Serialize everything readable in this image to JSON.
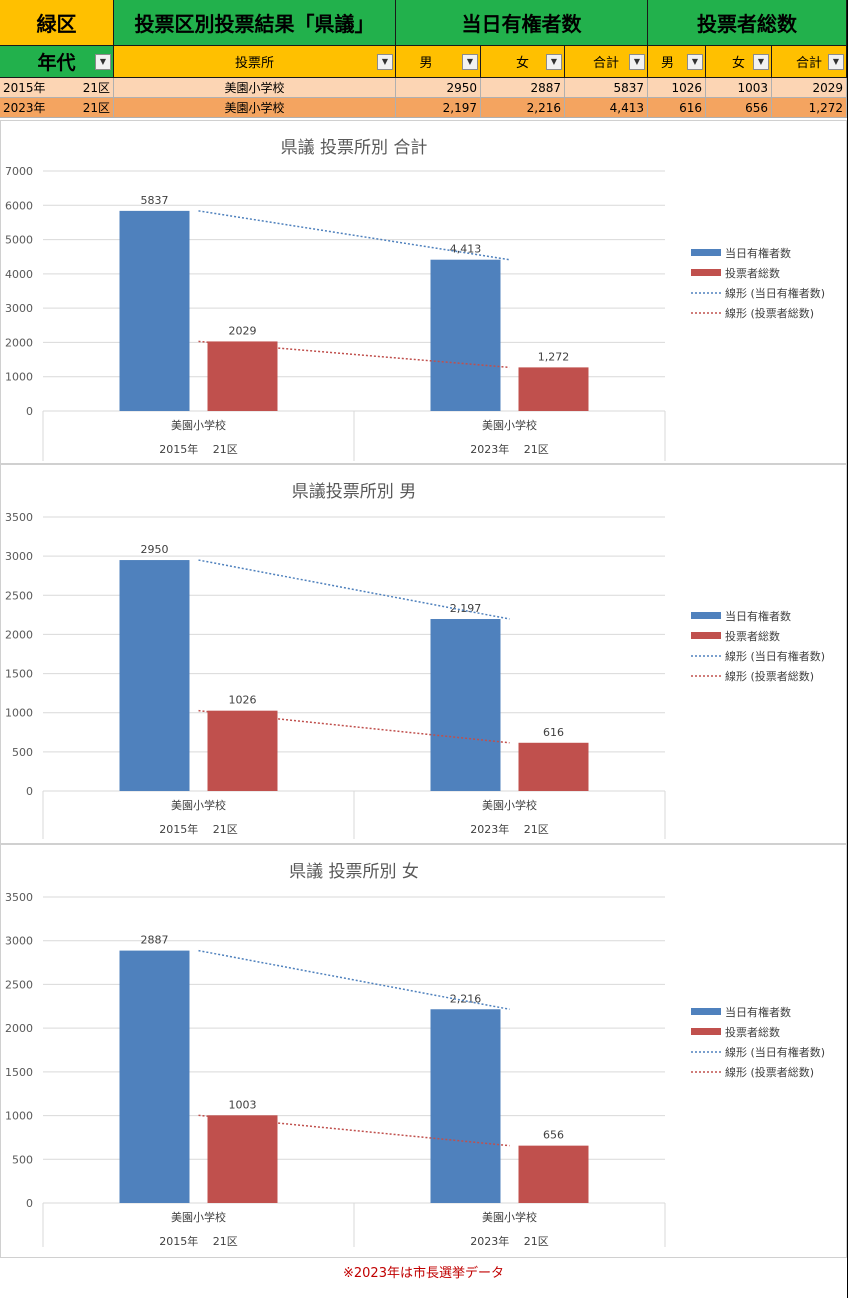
{
  "header": {
    "ward": "緑区",
    "title": "投票区別投票結果「県議」",
    "electors": "当日有権者数",
    "voters": "投票者総数"
  },
  "columns": {
    "era": "年代",
    "station": "投票所",
    "male": "男",
    "female": "女",
    "total": "合計",
    "male2": "男",
    "female2": "女",
    "total2": "合計"
  },
  "rows": [
    {
      "era": "2015年",
      "district": "21区",
      "station": "美園小学校",
      "e_male": "2950",
      "e_female": "2887",
      "e_total": "5837",
      "v_male": "1026",
      "v_female": "1003",
      "v_total": "2029"
    },
    {
      "era": "2023年",
      "district": "21区",
      "station": "美園小学校",
      "e_male": "2,197",
      "e_female": "2,216",
      "e_total": "4,413",
      "v_male": "616",
      "v_female": "656",
      "v_total": "1,272"
    }
  ],
  "colors": {
    "green": "#22b14c",
    "yellow": "#ffc000",
    "row1": "#fcd5b4",
    "row2": "#f4a460",
    "electors": "#4f81bd",
    "voters": "#c0504d",
    "note": "#c00000"
  },
  "chart_data": [
    {
      "type": "bar",
      "title": "県議  投票所別  合計",
      "categories": [
        [
          "美園小学校",
          "2015年　 21区"
        ],
        [
          "美園小学校",
          "2023年　 21区"
        ]
      ],
      "series": [
        {
          "name": "当日有権者数",
          "values": [
            5837,
            4413
          ],
          "labels": [
            "5837",
            "4,413"
          ]
        },
        {
          "name": "投票者総数",
          "values": [
            2029,
            1272
          ],
          "labels": [
            "2029",
            "1,272"
          ]
        }
      ],
      "trendlines": [
        "線形 (当日有権者数)",
        "線形 (投票者総数)"
      ],
      "ylim": [
        0,
        7000
      ],
      "yticks": [
        0,
        1000,
        2000,
        3000,
        4000,
        5000,
        6000,
        7000
      ],
      "grid": true,
      "legend": "right"
    },
    {
      "type": "bar",
      "title": "県議投票所別  男",
      "categories": [
        [
          "美園小学校",
          "2015年　 21区"
        ],
        [
          "美園小学校",
          "2023年　 21区"
        ]
      ],
      "series": [
        {
          "name": "当日有権者数",
          "values": [
            2950,
            2197
          ],
          "labels": [
            "2950",
            "2,197"
          ]
        },
        {
          "name": "投票者総数",
          "values": [
            1026,
            616
          ],
          "labels": [
            "1026",
            "616"
          ]
        }
      ],
      "trendlines": [
        "線形 (当日有権者数)",
        "線形 (投票者総数)"
      ],
      "ylim": [
        0,
        3500
      ],
      "yticks": [
        0,
        500,
        1000,
        1500,
        2000,
        2500,
        3000,
        3500
      ],
      "grid": true,
      "legend": "right"
    },
    {
      "type": "bar",
      "title": "県議  投票所別  女",
      "categories": [
        [
          "美園小学校",
          "2015年　 21区"
        ],
        [
          "美園小学校",
          "2023年　 21区"
        ]
      ],
      "series": [
        {
          "name": "当日有権者数",
          "values": [
            2887,
            2216
          ],
          "labels": [
            "2887",
            "2,216"
          ]
        },
        {
          "name": "投票者総数",
          "values": [
            1003,
            656
          ],
          "labels": [
            "1003",
            "656"
          ]
        }
      ],
      "trendlines": [
        "線形 (当日有権者数)",
        "線形 (投票者総数)"
      ],
      "ylim": [
        0,
        3500
      ],
      "yticks": [
        0,
        500,
        1000,
        1500,
        2000,
        2500,
        3000,
        3500
      ],
      "grid": true,
      "legend": "right"
    }
  ],
  "note": "※2023年は市長選挙データ"
}
